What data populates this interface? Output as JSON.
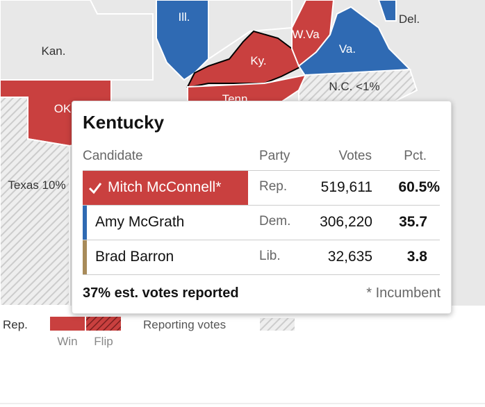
{
  "map": {
    "labels": [
      "Ill.",
      "Del.",
      "W.Va",
      "Va.",
      "Kan.",
      "Ky.",
      "Tenn",
      "N.C. <1%",
      "OK",
      "Texas 10%"
    ]
  },
  "tooltip": {
    "title": "Kentucky",
    "columns": [
      "Candidate",
      "Party",
      "Votes",
      "Pct."
    ],
    "rows": [
      [
        "Mitch McConnell*",
        "Rep.",
        "519,611",
        "60.5%"
      ],
      [
        "Amy McGrath",
        "Dem.",
        "306,220",
        "35.7"
      ],
      [
        "Brad Barron",
        "Lib.",
        "32,635",
        "3.8"
      ]
    ],
    "footer": {
      "reported": "37% est. votes reported",
      "note": "* Incumbent"
    }
  },
  "legend": {
    "party": "Rep.",
    "win": "Win",
    "flip": "Flip",
    "reporting": "Reporting votes"
  }
}
